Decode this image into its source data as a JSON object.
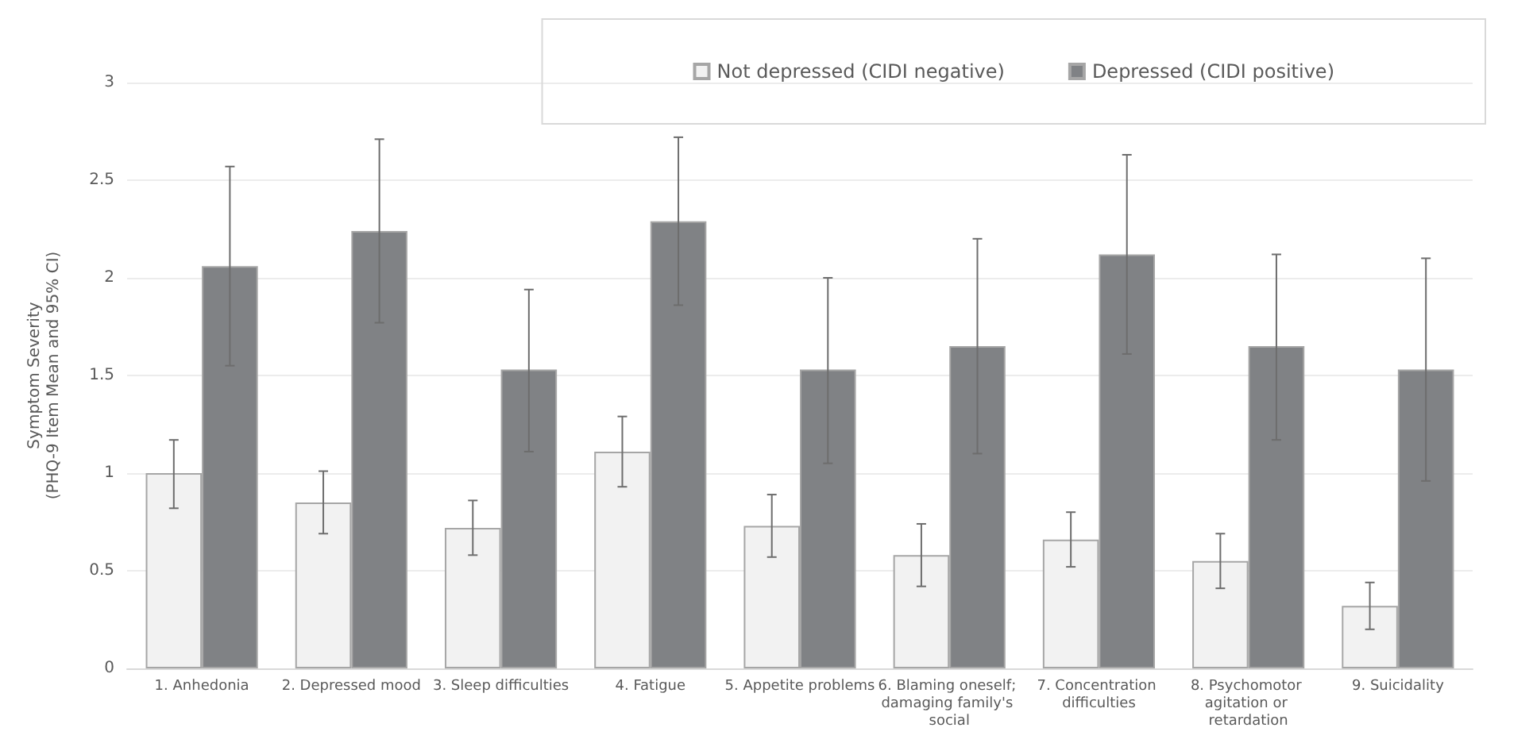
{
  "chart_data": {
    "type": "bar",
    "ylabel": "Symptom Severity\n(PHQ-9 Item Mean and 95% CI)",
    "categories": [
      "1. Anhedonia",
      "2. Depressed mood",
      "3. Sleep difficulties",
      "4. Fatigue",
      "5. Appetite problems",
      "6. Blaming oneself; damaging family's social",
      "7. Concentration difficulties",
      "8. Psychomotor agitation or retardation",
      "9. Suicidality"
    ],
    "series": [
      {
        "name": "Not depressed (CIDI negative)",
        "color": "#f2f2f2",
        "values": [
          1.0,
          0.85,
          0.72,
          1.11,
          0.73,
          0.58,
          0.66,
          0.55,
          0.32
        ],
        "errors": [
          [
            0.82,
            1.17
          ],
          [
            0.69,
            1.01
          ],
          [
            0.58,
            0.86
          ],
          [
            0.93,
            1.29
          ],
          [
            0.57,
            0.89
          ],
          [
            0.42,
            0.74
          ],
          [
            0.52,
            0.8
          ],
          [
            0.41,
            0.69
          ],
          [
            0.2,
            0.44
          ]
        ]
      },
      {
        "name": "Depressed (CIDI positive)",
        "color": "#808285",
        "values": [
          2.06,
          2.24,
          1.53,
          2.29,
          1.53,
          1.65,
          2.12,
          1.65,
          1.53
        ],
        "errors": [
          [
            1.55,
            2.57
          ],
          [
            1.77,
            2.71
          ],
          [
            1.11,
            1.94
          ],
          [
            1.86,
            2.72
          ],
          [
            1.05,
            2.0
          ],
          [
            1.1,
            2.2
          ],
          [
            1.61,
            2.63
          ],
          [
            1.17,
            2.12
          ],
          [
            0.96,
            2.1
          ]
        ]
      }
    ],
    "ylim": [
      0,
      3
    ],
    "yticks": [
      0,
      0.5,
      1,
      1.5,
      2,
      2.5,
      3
    ],
    "grid": "y",
    "legend": "top right"
  }
}
